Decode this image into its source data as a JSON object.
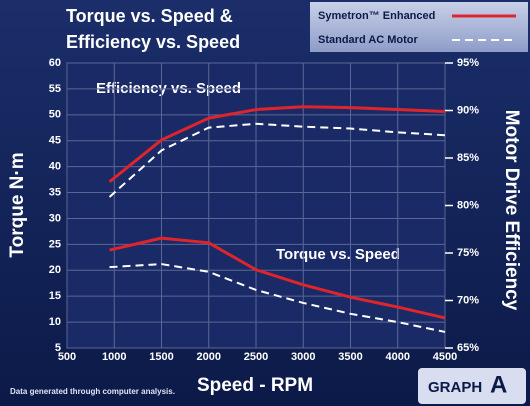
{
  "chart_data": {
    "type": "line",
    "title": [
      "Torque vs. Speed &",
      "Efficiency vs. Speed"
    ],
    "xlabel": "Speed - RPM",
    "ylabel": "Torque N·m",
    "y2label": "Motor Drive Efficiency",
    "annotations": [
      "Efficiency vs. Speed",
      "Torque vs. Speed"
    ],
    "footnote": "Data generated through computer analysis.",
    "badge": [
      "GRAPH",
      "A"
    ],
    "x": [
      950,
      1500,
      2000,
      2500,
      3000,
      3500,
      4000,
      4500
    ],
    "xlim": [
      500,
      4500
    ],
    "xticks": [
      500,
      1000,
      1500,
      2000,
      2500,
      3000,
      3500,
      4000,
      4500
    ],
    "ylim": [
      5,
      60
    ],
    "yticks": [
      5,
      10,
      15,
      20,
      25,
      30,
      35,
      40,
      45,
      50,
      55,
      60
    ],
    "y2lim": [
      65,
      95
    ],
    "y2ticks": [
      {
        "value": 65,
        "label": "65%"
      },
      {
        "value": 70,
        "label": "70%"
      },
      {
        "value": 75,
        "label": "75%"
      },
      {
        "value": 80,
        "label": "80%"
      },
      {
        "value": 85,
        "label": "85%"
      },
      {
        "value": 90,
        "label": "90%"
      },
      {
        "value": 95,
        "label": "95%"
      }
    ],
    "grid": true,
    "legend": "top-right",
    "series": [
      {
        "name": "Symetron™ Enhanced",
        "color": "#e0242c",
        "dashed": false,
        "values": [
          23.9,
          26.2,
          25.3,
          20.1,
          17.2,
          14.8,
          12.9,
          10.8
        ],
        "y2_values": [
          82.5,
          86.9,
          89.2,
          90.1,
          90.4,
          90.3,
          90.1,
          89.9
        ]
      },
      {
        "name": "Standard AC Motor",
        "color": "#ffffff",
        "dashed": true,
        "values": [
          20.6,
          21.2,
          19.7,
          16.2,
          13.7,
          11.6,
          10.0,
          8.1
        ],
        "y2_values": [
          80.9,
          85.8,
          88.2,
          88.6,
          88.3,
          88.1,
          87.7,
          87.4
        ]
      }
    ]
  }
}
